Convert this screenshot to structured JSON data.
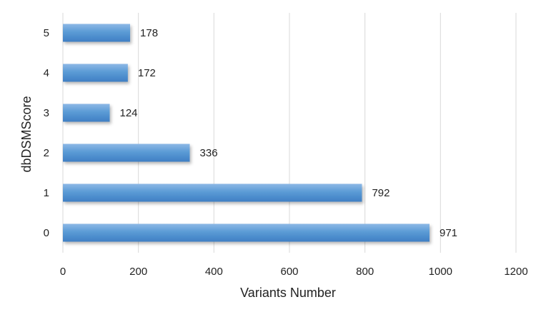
{
  "chart_data": {
    "type": "bar",
    "orientation": "horizontal",
    "categories": [
      "0",
      "1",
      "2",
      "3",
      "4",
      "5"
    ],
    "values": [
      971,
      792,
      336,
      124,
      172,
      178
    ],
    "data_labels": [
      "971",
      "792",
      "336",
      "124",
      "172",
      "178"
    ],
    "xlabel": "Variants Number",
    "ylabel": "dbDSMScore",
    "xlim": [
      0,
      1200
    ],
    "x_ticks": [
      "0",
      "200",
      "400",
      "600",
      "800",
      "1000",
      "1200"
    ],
    "grid": "vertical",
    "legend": "none",
    "bar_color": "#5b9bd5",
    "bar_gradient_light": "#8db8e6",
    "bar_gradient_dark": "#3f7fc4",
    "grid_color": "#d9d9d9"
  }
}
